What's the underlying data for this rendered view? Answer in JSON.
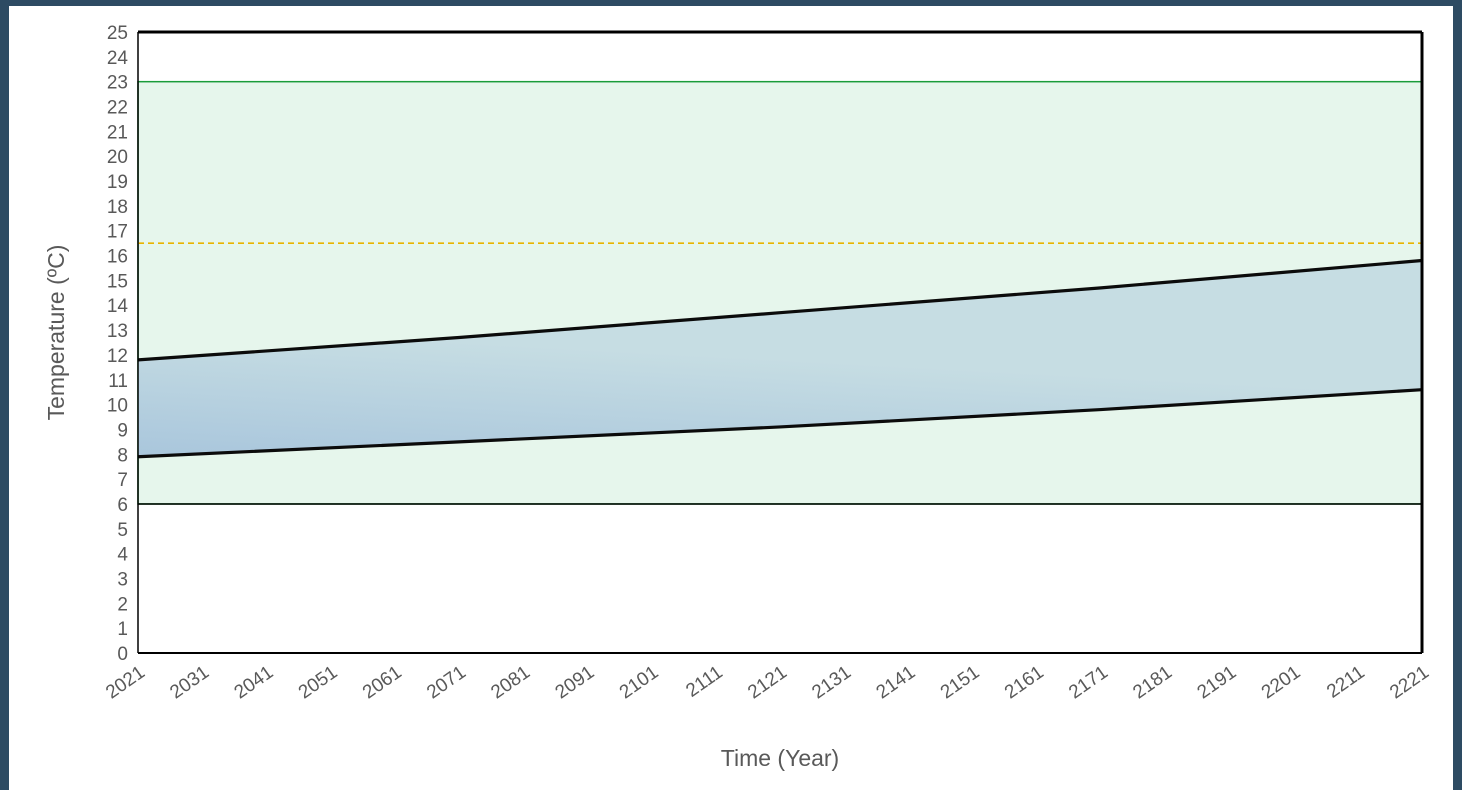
{
  "chart_data": {
    "type": "area",
    "title": "",
    "xlabel": "Time (Year)",
    "ylabel": "Temperature (ºC)",
    "x_tick_labels": [
      "2021",
      "2031",
      "2041",
      "2051",
      "2061",
      "2071",
      "2081",
      "2091",
      "2101",
      "2111",
      "2121",
      "2131",
      "2141",
      "2151",
      "2161",
      "2171",
      "2181",
      "2191",
      "2201",
      "2211",
      "2221"
    ],
    "y_tick_labels": [
      "0",
      "1",
      "2",
      "3",
      "4",
      "5",
      "6",
      "7",
      "8",
      "9",
      "10",
      "11",
      "12",
      "13",
      "14",
      "15",
      "16",
      "17",
      "18",
      "19",
      "20",
      "21",
      "22",
      "23",
      "24",
      "25"
    ],
    "xlim": [
      2021,
      2221
    ],
    "ylim": [
      0,
      25
    ],
    "grid": false,
    "legend": "none",
    "series": [
      {
        "role": "upper",
        "x": [
          2021,
          2071,
          2121,
          2171,
          2221
        ],
        "y": [
          11.8,
          12.7,
          13.7,
          14.7,
          15.8
        ]
      },
      {
        "role": "lower",
        "x": [
          2021,
          2071,
          2121,
          2171,
          2221
        ],
        "y": [
          7.9,
          8.5,
          9.1,
          9.8,
          10.6
        ]
      }
    ],
    "reference_band": {
      "y_min": 6,
      "y_max": 23
    },
    "reference_line": {
      "y": 16.5,
      "style": "dashed"
    },
    "colors": {
      "band_fill": "#e6f6ec",
      "band_edge": "#1a9c3a",
      "reference_line": "#e8b400",
      "range_fill": "#c6dde3",
      "range_fill_dark": "#a9c6dc",
      "series_line": "#0b0b0b",
      "axis": "#000000",
      "background": "#2d4b63"
    }
  }
}
